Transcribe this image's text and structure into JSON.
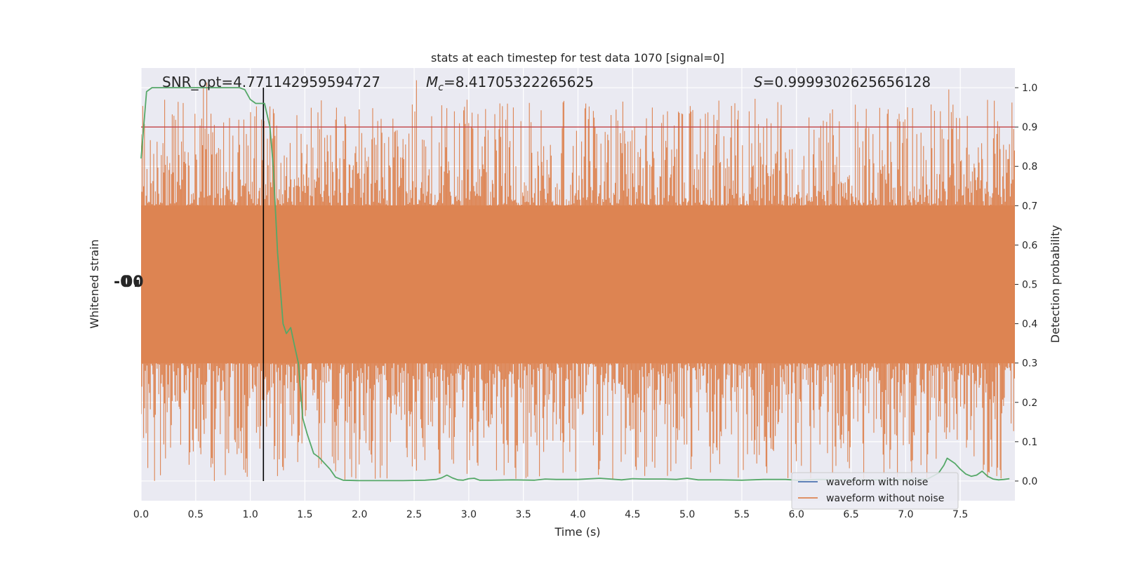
{
  "chart_data": {
    "type": "line",
    "title": "stats at each timestep for test data 1070 [signal=0]",
    "xlabel": "Time (s)",
    "ylabel_left": "Whitened strain",
    "ylabel_right": "Detection probability",
    "xlim": [
      0.0,
      8.0
    ],
    "ylim_right": [
      -0.05,
      1.05
    ],
    "xticks": [
      "0.0",
      "0.5",
      "1.0",
      "1.5",
      "2.0",
      "2.5",
      "3.0",
      "3.5",
      "4.0",
      "4.5",
      "5.0",
      "5.5",
      "6.0",
      "6.5",
      "7.0",
      "7.5"
    ],
    "yticks_right": [
      "0.0",
      "0.1",
      "0.2",
      "0.3",
      "0.4",
      "0.5",
      "0.6",
      "0.7",
      "0.8",
      "0.9",
      "1.0"
    ],
    "grid": true,
    "legend_position": "lower-right",
    "annotations": {
      "snr": "SNR_opt=4.771142959594727",
      "mc": "=8.41705322265625",
      "mc_symbol": "M",
      "mc_subscript": "c",
      "s": "=0.9999302625656128",
      "s_symbol": "S"
    },
    "threshold": {
      "value": 0.9,
      "color": "#c44e52"
    },
    "vertical_marker": {
      "x": 1.12,
      "color": "#000000"
    },
    "series": [
      {
        "name": "waveform with noise",
        "color": "#4c72b0",
        "kind": "strain"
      },
      {
        "name": "waveform without noise",
        "color": "#dd8452",
        "kind": "strain",
        "band_core": [
          0.3,
          0.7
        ]
      },
      {
        "kind": "probability",
        "color": "#55a868",
        "x": [
          0.0,
          0.05,
          0.1,
          0.2,
          0.3,
          0.4,
          0.5,
          0.6,
          0.7,
          0.8,
          0.9,
          0.95,
          1.0,
          1.05,
          1.1,
          1.13,
          1.18,
          1.21,
          1.25,
          1.3,
          1.33,
          1.37,
          1.4,
          1.44,
          1.48,
          1.52,
          1.58,
          1.63,
          1.68,
          1.73,
          1.78,
          1.85,
          2.0,
          2.2,
          2.4,
          2.6,
          2.7,
          2.75,
          2.8,
          2.85,
          2.9,
          2.95,
          3.0,
          3.05,
          3.1,
          3.2,
          3.4,
          3.6,
          3.7,
          3.8,
          4.0,
          4.2,
          4.4,
          4.5,
          4.6,
          4.8,
          4.9,
          5.0,
          5.1,
          5.3,
          5.5,
          5.7,
          5.9,
          6.0,
          6.2,
          6.5,
          6.8,
          7.0,
          7.2,
          7.3,
          7.35,
          7.38,
          7.45,
          7.5,
          7.55,
          7.6,
          7.65,
          7.7,
          7.75,
          7.8,
          7.85,
          7.9,
          7.95
        ],
        "values": [
          0.82,
          0.99,
          1.0,
          1.0,
          1.0,
          1.0,
          1.0,
          1.0,
          1.0,
          1.0,
          1.0,
          0.995,
          0.97,
          0.96,
          0.96,
          0.96,
          0.9,
          0.8,
          0.58,
          0.4,
          0.375,
          0.39,
          0.35,
          0.3,
          0.16,
          0.12,
          0.07,
          0.06,
          0.045,
          0.03,
          0.01,
          0.002,
          0.001,
          0.001,
          0.001,
          0.002,
          0.004,
          0.008,
          0.015,
          0.008,
          0.003,
          0.002,
          0.006,
          0.007,
          0.002,
          0.002,
          0.003,
          0.002,
          0.005,
          0.004,
          0.004,
          0.007,
          0.003,
          0.006,
          0.005,
          0.005,
          0.004,
          0.007,
          0.003,
          0.003,
          0.002,
          0.004,
          0.004,
          0.002,
          0.004,
          0.003,
          0.003,
          0.004,
          0.005,
          0.02,
          0.04,
          0.058,
          0.045,
          0.03,
          0.018,
          0.012,
          0.015,
          0.025,
          0.012,
          0.005,
          0.003,
          0.004,
          0.006
        ]
      }
    ]
  }
}
